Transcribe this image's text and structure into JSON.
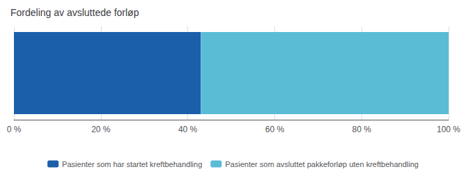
{
  "chart_data": {
    "type": "bar",
    "orientation": "horizontal",
    "stacked": true,
    "title": "Fordeling av avsluttede forløp",
    "categories": [
      null
    ],
    "series": [
      {
        "name": "Pasienter som har startet kreftbehandling",
        "color": "#1b5faa",
        "values": [
          43
        ]
      },
      {
        "name": "Pasienter som avsluttet pakkeforløp uten kreftbehandling",
        "color": "#5bbcd6",
        "values": [
          57
        ]
      }
    ],
    "xlim": [
      0,
      100
    ],
    "xticks": [
      {
        "value": 0,
        "label": "0 %"
      },
      {
        "value": 20,
        "label": "20 %"
      },
      {
        "value": 40,
        "label": "40 %"
      },
      {
        "value": 60,
        "label": "60 %"
      },
      {
        "value": 80,
        "label": "80 %"
      },
      {
        "value": 100,
        "label": "100 %"
      }
    ],
    "grid": true,
    "legend": "bottom",
    "tick_labels": "x"
  }
}
